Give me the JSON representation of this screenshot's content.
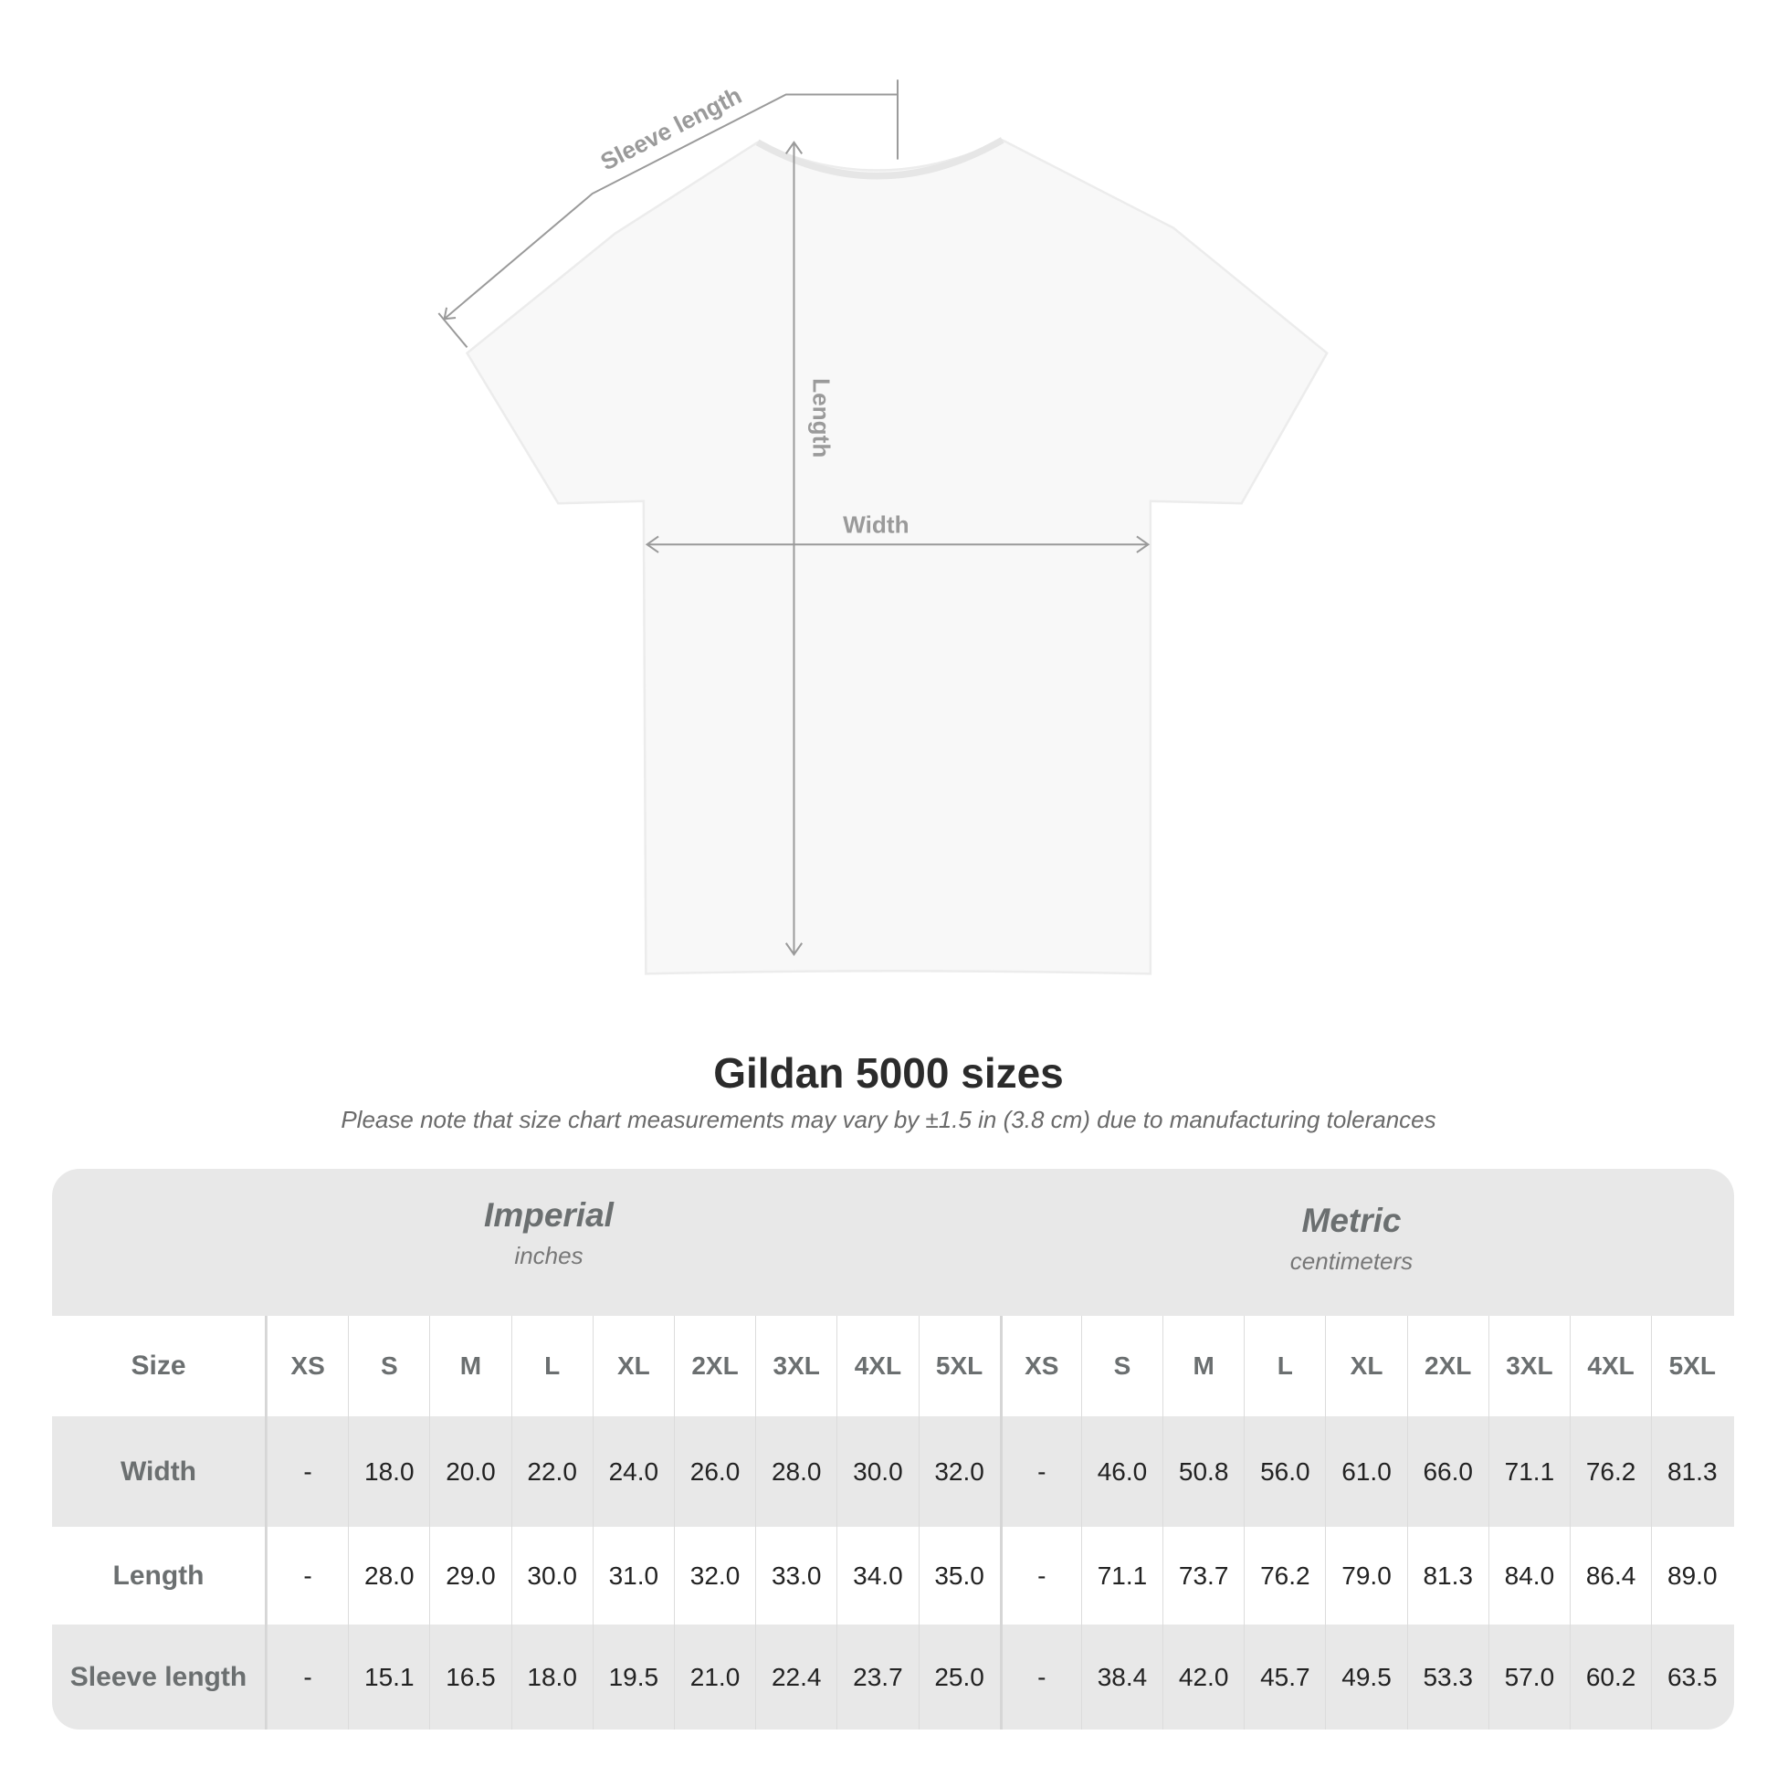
{
  "diagram": {
    "labels": {
      "sleeve_length": "Sleeve length",
      "length": "Length",
      "width": "Width"
    },
    "shirt_color": "#ffffff",
    "annotation_color": "#9a9a9a"
  },
  "title": "Gildan 5000 sizes",
  "subtitle": "Please note that size chart measurements may vary by ±1.5 in (3.8 cm) due to manufacturing tolerances",
  "table": {
    "groups": [
      {
        "name": "Imperial",
        "unit": "inches"
      },
      {
        "name": "Metric",
        "unit": "centimeters"
      }
    ],
    "size_label": "Size",
    "sizes": [
      "XS",
      "S",
      "M",
      "L",
      "XL",
      "2XL",
      "3XL",
      "4XL",
      "5XL"
    ],
    "rows": [
      {
        "label": "Width",
        "imperial": [
          "-",
          "18.0",
          "20.0",
          "22.0",
          "24.0",
          "26.0",
          "28.0",
          "30.0",
          "32.0"
        ],
        "metric": [
          "-",
          "46.0",
          "50.8",
          "56.0",
          "61.0",
          "66.0",
          "71.1",
          "76.2",
          "81.3"
        ]
      },
      {
        "label": "Length",
        "imperial": [
          "-",
          "28.0",
          "29.0",
          "30.0",
          "31.0",
          "32.0",
          "33.0",
          "34.0",
          "35.0"
        ],
        "metric": [
          "-",
          "71.1",
          "73.7",
          "76.2",
          "79.0",
          "81.3",
          "84.0",
          "86.4",
          "89.0"
        ]
      },
      {
        "label": "Sleeve length",
        "imperial": [
          "-",
          "15.1",
          "16.5",
          "18.0",
          "19.5",
          "21.0",
          "22.4",
          "23.7",
          "25.0"
        ],
        "metric": [
          "-",
          "38.4",
          "42.0",
          "45.7",
          "49.5",
          "53.3",
          "57.0",
          "60.2",
          "63.5"
        ]
      }
    ]
  }
}
